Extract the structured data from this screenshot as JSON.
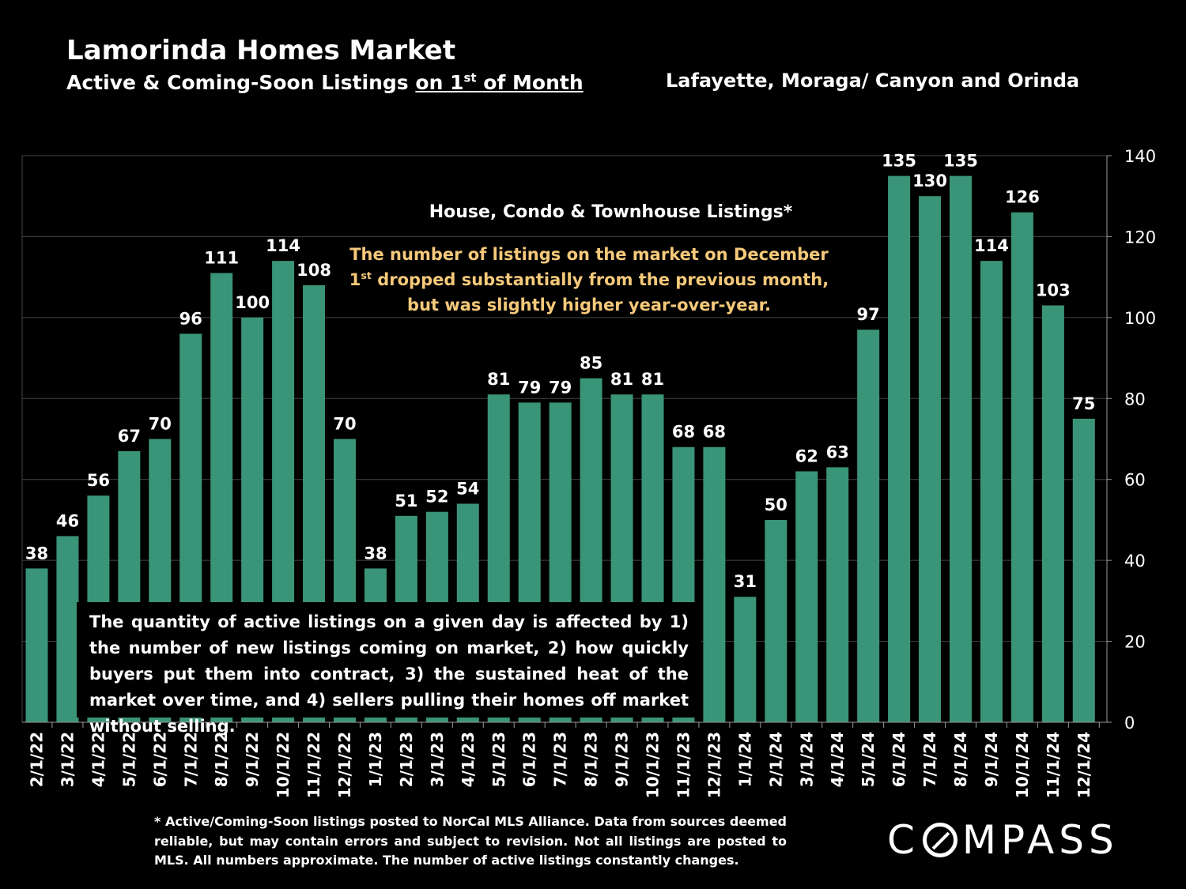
{
  "header": {
    "title": "Lamorinda Homes Market",
    "subtitle_prefix": "Active & Coming-Soon Listings ",
    "subtitle_underlined_pre": "on 1",
    "subtitle_sup": "st",
    "subtitle_underlined_post": " of Month",
    "region": "Lafayette, Moraga/ Canyon and Orinda"
  },
  "series_label": "House, Condo & Townhouse Listings*",
  "annotation": {
    "line1": "The number of listings on the market on December",
    "line2_pre": "1",
    "line2_sup": "st",
    "line2_post": " dropped substantially from the previous month,",
    "line3": "but was slightly higher year-over-year."
  },
  "note_box": "The quantity of active listings on a given day is affected by 1) the number of new listings coming on market, 2) how quickly buyers put them into contract, 3) the sustained heat of the market over time, and 4) sellers pulling their homes off market without selling.",
  "footnote": "* Active/Coming-Soon listings posted to NorCal MLS Alliance.  Data from sources deemed reliable, but may contain errors and subject to revision.  Not all listings are posted to MLS. All numbers approximate. The number of active listings constantly changes.",
  "logo": {
    "pre": "C",
    "post": "MPASS"
  },
  "chart_data": {
    "type": "bar",
    "categories": [
      "2/1/22",
      "3/1/22",
      "4/1/22",
      "5/1/22",
      "6/1/22",
      "7/1/22",
      "8/1/22",
      "9/1/22",
      "10/1/22",
      "11/1/22",
      "12/1/22",
      "1/1/23",
      "2/1/23",
      "3/1/23",
      "4/1/23",
      "5/1/23",
      "6/1/23",
      "7/1/23",
      "8/1/23",
      "9/1/23",
      "10/1/23",
      "11/1/23",
      "12/1/23",
      "1/1/24",
      "2/1/24",
      "3/1/24",
      "4/1/24",
      "5/1/24",
      "6/1/24",
      "7/1/24",
      "8/1/24",
      "9/1/24",
      "10/1/24",
      "11/1/24",
      "12/1/24"
    ],
    "values": [
      38,
      46,
      56,
      67,
      70,
      96,
      111,
      100,
      114,
      108,
      70,
      38,
      51,
      52,
      54,
      81,
      79,
      79,
      85,
      81,
      81,
      68,
      68,
      31,
      50,
      62,
      63,
      97,
      135,
      130,
      135,
      114,
      126,
      103,
      75
    ],
    "ylim": [
      0,
      140
    ],
    "yticks": [
      0,
      20,
      40,
      60,
      80,
      100,
      120,
      140
    ],
    "y_axis_side": "right",
    "grid": true,
    "data_labels": true,
    "bar_color": "#3a9478",
    "grid_color": "#444444"
  }
}
